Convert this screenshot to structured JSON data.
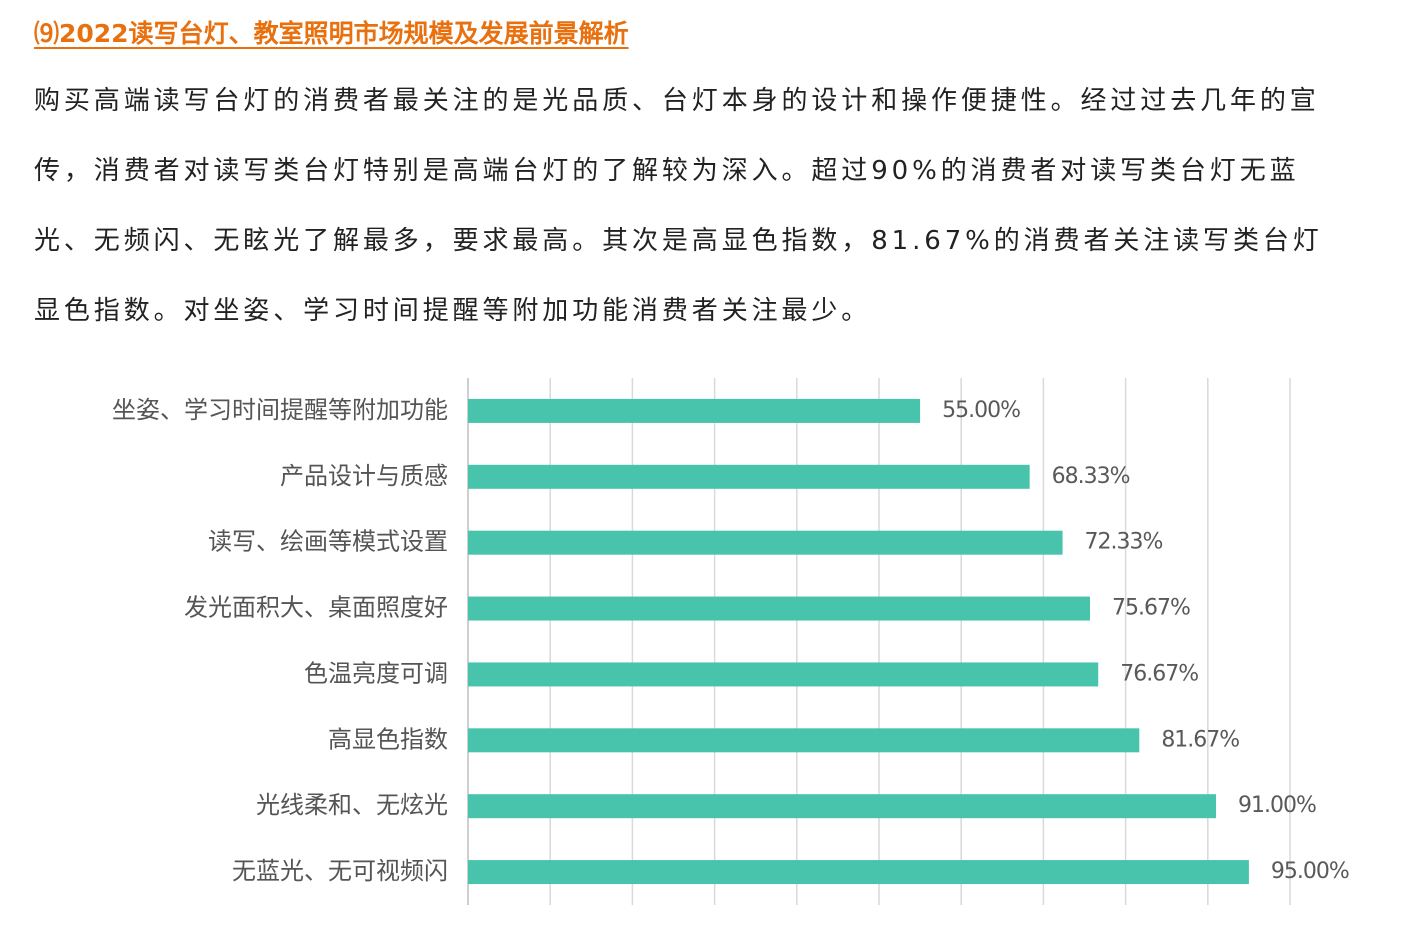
{
  "heading": "⑼2022读写台灯、教室照明市场规模及发展前景解析",
  "paragraph": "购买高端读写台灯的消费者最关注的是光品质、台灯本身的设计和操作便捷性。经过过去几年的宣传，消费者对读写类台灯特别是高端台灯的了解较为深入。超过90%的消费者对读写类台灯无蓝光、无频闪、无眩光了解最多，要求最高。其次是高显色指数，81.67%的消费者关注读写类台灯显色指数。对坐姿、学习时间提醒等附加功能消费者关注最少。",
  "chart_data": {
    "type": "hbar",
    "categories": [
      "坐姿、学习时间提醒等附加功能",
      "产品设计与质感",
      "读写、绘画等模式设置",
      "发光面积大、桌面照度好",
      "色温亮度可调",
      "高显色指数",
      "光线柔和、无炫光",
      "无蓝光、无可视频闪"
    ],
    "values": [
      55,
      68.33,
      72.33,
      75.67,
      76.67,
      81.67,
      91,
      95
    ],
    "value_labels": [
      "55.00%",
      "68.33%",
      "72.33%",
      "75.67%",
      "76.67%",
      "81.67%",
      "91.00%",
      "95.00%"
    ],
    "color": "#48c4ad",
    "xlim": [
      0,
      100
    ],
    "xticks": [
      0,
      10,
      20,
      30,
      40,
      50,
      60,
      70,
      80,
      90,
      100
    ],
    "grid": true
  }
}
